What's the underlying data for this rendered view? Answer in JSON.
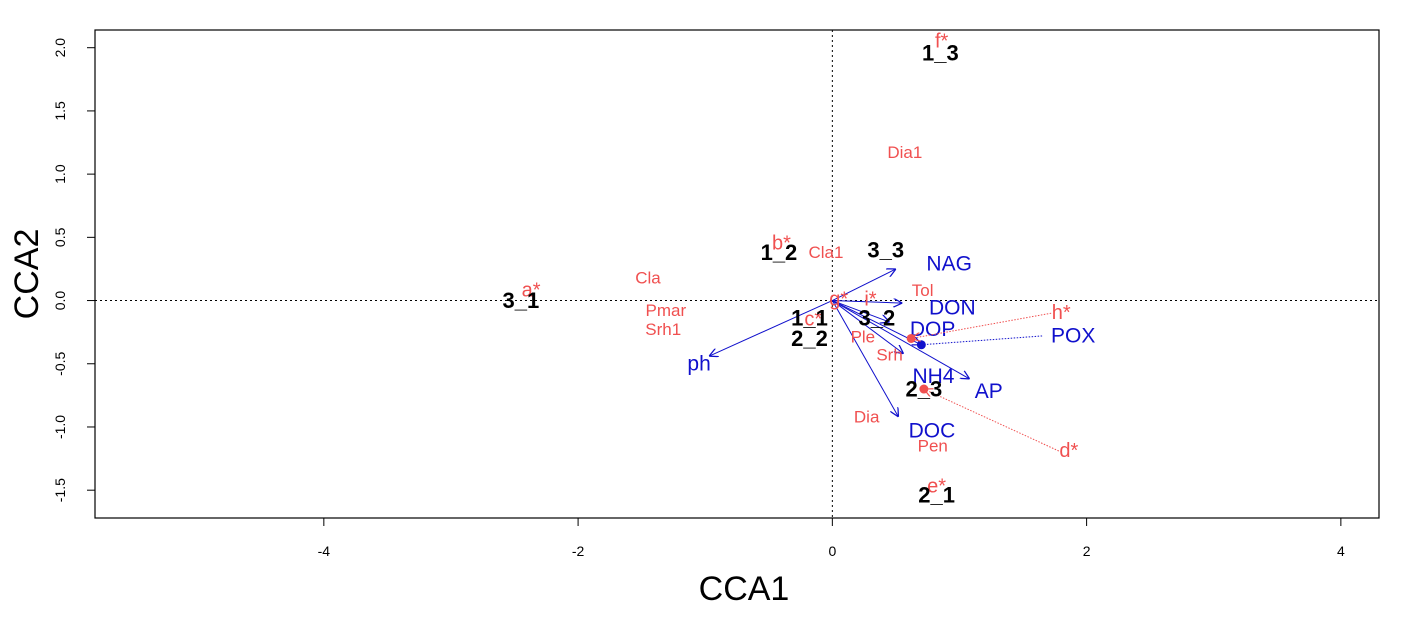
{
  "chart_data": {
    "type": "scatter",
    "title": "",
    "xlabel": "CCA1",
    "ylabel": "CCA2",
    "xlim": [
      -5.8,
      4.3
    ],
    "ylim": [
      -1.72,
      2.14
    ],
    "xticks": [
      -4,
      -2,
      0,
      2,
      4
    ],
    "yticks": [
      -1.5,
      -1.0,
      -0.5,
      0.0,
      0.5,
      1.0,
      1.5,
      2.0
    ],
    "xtick_labels": [
      "-4",
      "-2",
      "0",
      "2",
      "4"
    ],
    "ytick_labels": [
      "-1.5",
      "-1.0",
      "-0.5",
      "0.0",
      "0.5",
      "1.0",
      "1.5",
      "2.0"
    ],
    "reference_lines": {
      "x": 0,
      "y": 0,
      "style": "dotted"
    },
    "colors": {
      "sites": "#000000",
      "species": "#f05050",
      "environment": "#1010cc"
    },
    "sites": [
      {
        "label": "1_3",
        "x": 0.85,
        "y": 1.96
      },
      {
        "label": "1_2",
        "x": -0.42,
        "y": 0.38
      },
      {
        "label": "3_3",
        "x": 0.42,
        "y": 0.4
      },
      {
        "label": "3_1",
        "x": -2.45,
        "y": 0.0
      },
      {
        "label": "1_1",
        "x": -0.18,
        "y": -0.14
      },
      {
        "label": "3_2",
        "x": 0.35,
        "y": -0.14
      },
      {
        "label": "2_2",
        "x": -0.18,
        "y": -0.3
      },
      {
        "label": "2_3",
        "x": 0.72,
        "y": -0.7
      },
      {
        "label": "2_1",
        "x": 0.82,
        "y": -1.54
      }
    ],
    "species": [
      {
        "label": "Dia1",
        "x": 0.57,
        "y": 1.17
      },
      {
        "label": "Cla1",
        "x": -0.05,
        "y": 0.38
      },
      {
        "label": "Cla",
        "x": -1.45,
        "y": 0.18
      },
      {
        "label": "Pmar",
        "x": -1.31,
        "y": -0.08
      },
      {
        "label": "Srh1",
        "x": -1.33,
        "y": -0.23
      },
      {
        "label": "Tol",
        "x": 0.71,
        "y": 0.08
      },
      {
        "label": "Ple",
        "x": 0.24,
        "y": -0.29
      },
      {
        "label": "Srh",
        "x": 0.45,
        "y": -0.43
      },
      {
        "label": "Dia",
        "x": 0.27,
        "y": -0.92
      },
      {
        "label": "Pen",
        "x": 0.79,
        "y": -1.15
      }
    ],
    "environment": [
      {
        "label": "NAG",
        "x": 0.5,
        "y": 0.25,
        "label_x": 0.74,
        "label_y": 0.29
      },
      {
        "label": "DON",
        "x": 0.55,
        "y": -0.02,
        "label_x": 0.76,
        "label_y": -0.06
      },
      {
        "label": "DOP",
        "x": 0.45,
        "y": -0.17,
        "label_x": 0.61,
        "label_y": -0.23
      },
      {
        "label": "POX",
        "x": 0.7,
        "y": -0.35,
        "label_x": 1.72,
        "label_y": -0.28,
        "segment_from": [
          1.65,
          -0.28
        ]
      },
      {
        "label": "AP",
        "x": 1.08,
        "y": -0.62,
        "label_x": 1.12,
        "label_y": -0.72
      },
      {
        "label": "NH4",
        "x": 0.56,
        "y": -0.42,
        "label_x": 0.63,
        "label_y": -0.6
      },
      {
        "label": "DOC",
        "x": 0.52,
        "y": -0.92,
        "label_x": 0.6,
        "label_y": -1.03
      },
      {
        "label": "ph",
        "x": -0.97,
        "y": -0.44,
        "label_x": -1.14,
        "label_y": -0.5
      }
    ],
    "starred_points": [
      {
        "label": "f*",
        "x": 0.86,
        "y": 2.05
      },
      {
        "label": "b*",
        "x": -0.4,
        "y": 0.45
      },
      {
        "label": "a*",
        "x": -2.37,
        "y": 0.08
      },
      {
        "label": "g*",
        "x": 0.05,
        "y": 0.01
      },
      {
        "label": "i*",
        "x": 0.3,
        "y": 0.01
      },
      {
        "label": "c*",
        "x": -0.15,
        "y": -0.15
      },
      {
        "label": "h*",
        "x": 1.8,
        "y": -0.1,
        "arrow_to": [
          0.62,
          -0.3
        ],
        "point": [
          0.62,
          -0.3
        ]
      },
      {
        "label": "d*",
        "x": 1.86,
        "y": -1.19,
        "arrow_to": [
          0.72,
          -0.7
        ],
        "point": [
          0.72,
          -0.7
        ]
      },
      {
        "label": "e*",
        "x": 0.82,
        "y": -1.47
      }
    ]
  }
}
